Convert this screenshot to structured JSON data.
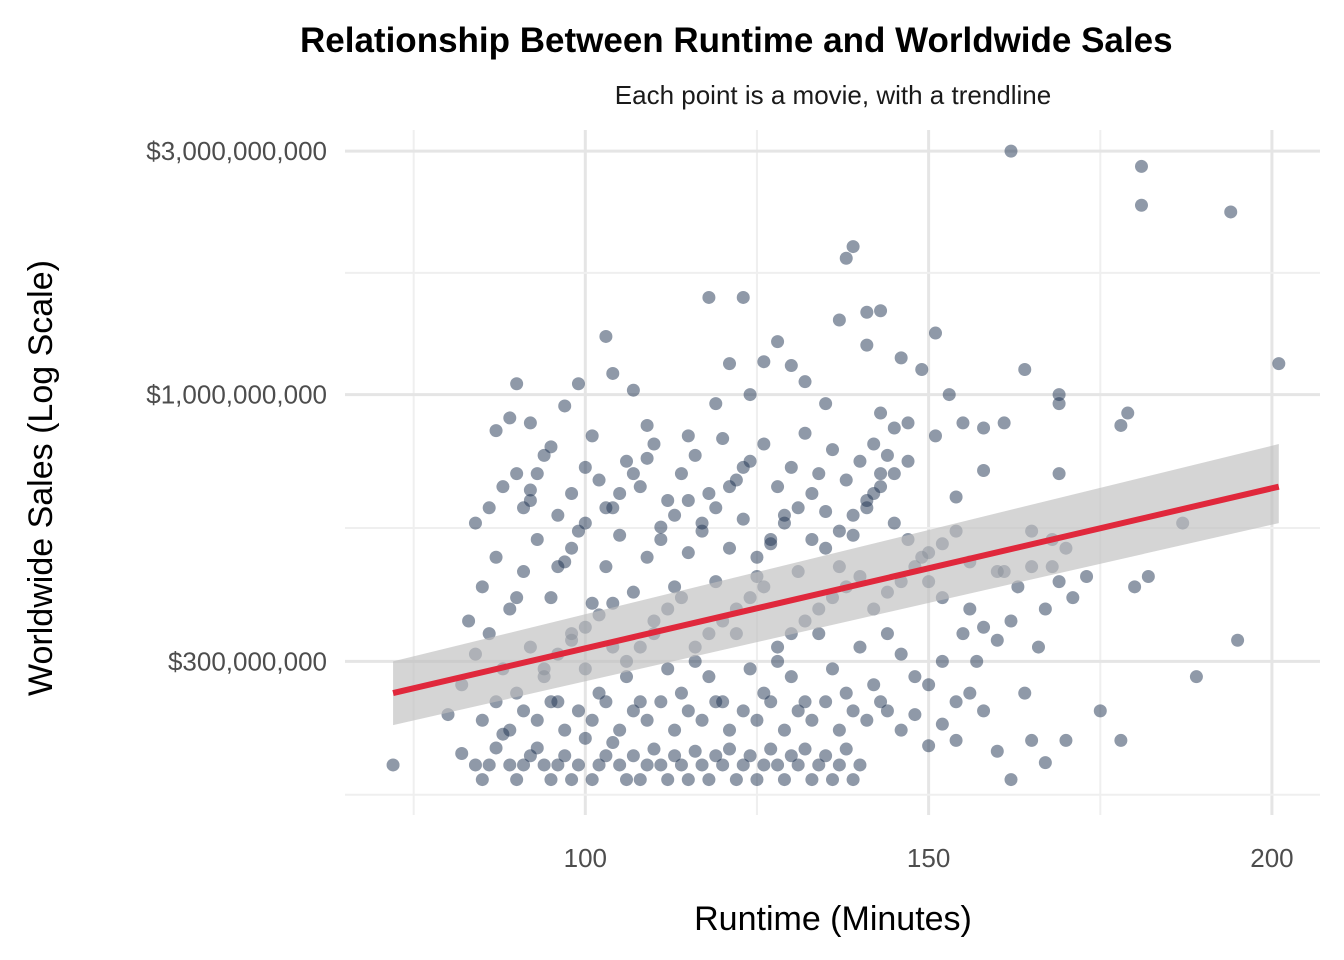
{
  "chart_data": {
    "type": "scatter",
    "title": "Relationship Between Runtime and Worldwide Sales",
    "subtitle": "Each point is a movie, with a trendline",
    "xlabel": "Runtime (Minutes)",
    "ylabel": "Worldwide Sales (Log Scale)",
    "x_ticks": [
      100,
      150,
      200
    ],
    "x_tick_labels": [
      "100",
      "150",
      "200"
    ],
    "y_ticks": [
      300000000,
      1000000000,
      3000000000
    ],
    "y_tick_labels": [
      "$300,000,000",
      "$1,000,000,000",
      "$3,000,000,000"
    ],
    "y_scale": "log",
    "xlim": [
      65,
      207
    ],
    "ylim": [
      150000000,
      3300000000
    ],
    "grid": true,
    "point_color": "#1f3352",
    "point_opacity": 0.5,
    "trendline": {
      "color": "#e0283c",
      "start": {
        "x": 72,
        "y": 260000000
      },
      "end": {
        "x": 201,
        "y": 660000000
      },
      "band_color": "#bfbfbf",
      "band_start": [
        225000000,
        300000000
      ],
      "band_end": [
        560000000,
        800000000
      ]
    },
    "points": [
      [
        72,
        188000000
      ],
      [
        80,
        236000000
      ],
      [
        82,
        198000000
      ],
      [
        84,
        188000000
      ],
      [
        85,
        176000000
      ],
      [
        86,
        188000000
      ],
      [
        87,
        203000000
      ],
      [
        88,
        216000000
      ],
      [
        89,
        188000000
      ],
      [
        90,
        176000000
      ],
      [
        91,
        188000000
      ],
      [
        92,
        196000000
      ],
      [
        93,
        203000000
      ],
      [
        94,
        188000000
      ],
      [
        95,
        176000000
      ],
      [
        96,
        188000000
      ],
      [
        97,
        196000000
      ],
      [
        98,
        176000000
      ],
      [
        99,
        188000000
      ],
      [
        100,
        212000000
      ],
      [
        101,
        176000000
      ],
      [
        102,
        188000000
      ],
      [
        103,
        196000000
      ],
      [
        104,
        208000000
      ],
      [
        105,
        188000000
      ],
      [
        106,
        176000000
      ],
      [
        107,
        196000000
      ],
      [
        108,
        176000000
      ],
      [
        109,
        188000000
      ],
      [
        110,
        202000000
      ],
      [
        111,
        188000000
      ],
      [
        112,
        176000000
      ],
      [
        113,
        196000000
      ],
      [
        114,
        188000000
      ],
      [
        115,
        176000000
      ],
      [
        116,
        200000000
      ],
      [
        117,
        188000000
      ],
      [
        118,
        176000000
      ],
      [
        119,
        196000000
      ],
      [
        120,
        188000000
      ],
      [
        121,
        202000000
      ],
      [
        122,
        176000000
      ],
      [
        123,
        188000000
      ],
      [
        124,
        196000000
      ],
      [
        125,
        176000000
      ],
      [
        126,
        188000000
      ],
      [
        127,
        202000000
      ],
      [
        128,
        188000000
      ],
      [
        129,
        176000000
      ],
      [
        130,
        196000000
      ],
      [
        131,
        188000000
      ],
      [
        132,
        202000000
      ],
      [
        133,
        176000000
      ],
      [
        134,
        188000000
      ],
      [
        135,
        196000000
      ],
      [
        136,
        176000000
      ],
      [
        137,
        188000000
      ],
      [
        138,
        202000000
      ],
      [
        139,
        176000000
      ],
      [
        140,
        188000000
      ],
      [
        82,
        270000000
      ],
      [
        84,
        310000000
      ],
      [
        86,
        340000000
      ],
      [
        88,
        290000000
      ],
      [
        90,
        260000000
      ],
      [
        92,
        320000000
      ],
      [
        94,
        280000000
      ],
      [
        96,
        250000000
      ],
      [
        98,
        340000000
      ],
      [
        100,
        290000000
      ],
      [
        102,
        260000000
      ],
      [
        104,
        320000000
      ],
      [
        106,
        280000000
      ],
      [
        108,
        250000000
      ],
      [
        110,
        340000000
      ],
      [
        112,
        290000000
      ],
      [
        114,
        260000000
      ],
      [
        116,
        320000000
      ],
      [
        118,
        280000000
      ],
      [
        120,
        250000000
      ],
      [
        122,
        340000000
      ],
      [
        124,
        290000000
      ],
      [
        126,
        260000000
      ],
      [
        128,
        320000000
      ],
      [
        130,
        280000000
      ],
      [
        132,
        250000000
      ],
      [
        134,
        340000000
      ],
      [
        136,
        290000000
      ],
      [
        138,
        260000000
      ],
      [
        140,
        320000000
      ],
      [
        83,
        360000000
      ],
      [
        85,
        420000000
      ],
      [
        87,
        480000000
      ],
      [
        89,
        380000000
      ],
      [
        91,
        450000000
      ],
      [
        93,
        520000000
      ],
      [
        95,
        400000000
      ],
      [
        97,
        470000000
      ],
      [
        99,
        540000000
      ],
      [
        101,
        390000000
      ],
      [
        103,
        460000000
      ],
      [
        105,
        530000000
      ],
      [
        107,
        410000000
      ],
      [
        109,
        480000000
      ],
      [
        111,
        550000000
      ],
      [
        113,
        420000000
      ],
      [
        115,
        490000000
      ],
      [
        117,
        560000000
      ],
      [
        119,
        430000000
      ],
      [
        121,
        500000000
      ],
      [
        123,
        570000000
      ],
      [
        125,
        440000000
      ],
      [
        127,
        510000000
      ],
      [
        129,
        580000000
      ],
      [
        131,
        450000000
      ],
      [
        133,
        520000000
      ],
      [
        135,
        590000000
      ],
      [
        137,
        460000000
      ],
      [
        139,
        530000000
      ],
      [
        141,
        600000000
      ],
      [
        84,
        560000000
      ],
      [
        86,
        600000000
      ],
      [
        88,
        660000000
      ],
      [
        90,
        700000000
      ],
      [
        92,
        620000000
      ],
      [
        94,
        760000000
      ],
      [
        96,
        580000000
      ],
      [
        98,
        640000000
      ],
      [
        100,
        720000000
      ],
      [
        102,
        680000000
      ],
      [
        104,
        600000000
      ],
      [
        106,
        740000000
      ],
      [
        108,
        660000000
      ],
      [
        110,
        800000000
      ],
      [
        112,
        620000000
      ],
      [
        114,
        700000000
      ],
      [
        116,
        760000000
      ],
      [
        118,
        640000000
      ],
      [
        120,
        820000000
      ],
      [
        122,
        680000000
      ],
      [
        124,
        740000000
      ],
      [
        126,
        800000000
      ],
      [
        128,
        660000000
      ],
      [
        130,
        720000000
      ],
      [
        132,
        840000000
      ],
      [
        134,
        700000000
      ],
      [
        136,
        780000000
      ],
      [
        138,
        680000000
      ],
      [
        140,
        740000000
      ],
      [
        142,
        800000000
      ],
      [
        87,
        850000000
      ],
      [
        89,
        900000000
      ],
      [
        90,
        1050000000
      ],
      [
        92,
        880000000
      ],
      [
        95,
        790000000
      ],
      [
        97,
        950000000
      ],
      [
        99,
        1050000000
      ],
      [
        101,
        830000000
      ],
      [
        103,
        1300000000
      ],
      [
        104,
        1100000000
      ],
      [
        107,
        1020000000
      ],
      [
        109,
        870000000
      ],
      [
        115,
        830000000
      ],
      [
        119,
        960000000
      ],
      [
        121,
        1150000000
      ],
      [
        124,
        1000000000
      ],
      [
        126,
        1160000000
      ],
      [
        128,
        1270000000
      ],
      [
        130,
        1140000000
      ],
      [
        132,
        1060000000
      ],
      [
        135,
        960000000
      ],
      [
        137,
        1400000000
      ],
      [
        138,
        1850000000
      ],
      [
        139,
        1950000000
      ],
      [
        141,
        1250000000
      ],
      [
        143,
        1460000000
      ],
      [
        146,
        1180000000
      ],
      [
        149,
        1120000000
      ],
      [
        151,
        1320000000
      ],
      [
        153,
        1000000000
      ],
      [
        118,
        1550000000
      ],
      [
        123,
        1550000000
      ],
      [
        141,
        1450000000
      ],
      [
        143,
        920000000
      ],
      [
        145,
        860000000
      ],
      [
        147,
        880000000
      ],
      [
        151,
        830000000
      ],
      [
        155,
        880000000
      ],
      [
        158,
        860000000
      ],
      [
        161,
        880000000
      ],
      [
        162,
        3000000000
      ],
      [
        181,
        2800000000
      ],
      [
        181,
        2350000000
      ],
      [
        194,
        2280000000
      ],
      [
        201,
        1150000000
      ],
      [
        164,
        1120000000
      ],
      [
        178,
        870000000
      ],
      [
        179,
        920000000
      ],
      [
        169,
        960000000
      ],
      [
        169,
        1000000000
      ],
      [
        142,
        640000000
      ],
      [
        143,
        700000000
      ],
      [
        144,
        760000000
      ],
      [
        145,
        560000000
      ],
      [
        147,
        520000000
      ],
      [
        149,
        480000000
      ],
      [
        150,
        430000000
      ],
      [
        152,
        400000000
      ],
      [
        154,
        540000000
      ],
      [
        156,
        470000000
      ],
      [
        144,
        340000000
      ],
      [
        146,
        310000000
      ],
      [
        148,
        280000000
      ],
      [
        150,
        270000000
      ],
      [
        152,
        300000000
      ],
      [
        154,
        250000000
      ],
      [
        156,
        380000000
      ],
      [
        158,
        350000000
      ],
      [
        160,
        330000000
      ],
      [
        162,
        360000000
      ],
      [
        142,
        270000000
      ],
      [
        144,
        240000000
      ],
      [
        146,
        220000000
      ],
      [
        148,
        236000000
      ],
      [
        150,
        205000000
      ],
      [
        152,
        226000000
      ],
      [
        154,
        210000000
      ],
      [
        156,
        260000000
      ],
      [
        158,
        240000000
      ],
      [
        160,
        200000000
      ],
      [
        161,
        450000000
      ],
      [
        163,
        420000000
      ],
      [
        165,
        460000000
      ],
      [
        167,
        380000000
      ],
      [
        169,
        430000000
      ],
      [
        171,
        400000000
      ],
      [
        173,
        440000000
      ],
      [
        165,
        540000000
      ],
      [
        168,
        520000000
      ],
      [
        170,
        500000000
      ],
      [
        162,
        176000000
      ],
      [
        164,
        260000000
      ],
      [
        165,
        210000000
      ],
      [
        167,
        190000000
      ],
      [
        170,
        210000000
      ],
      [
        175,
        240000000
      ],
      [
        178,
        210000000
      ],
      [
        180,
        420000000
      ],
      [
        182,
        440000000
      ],
      [
        187,
        560000000
      ],
      [
        189,
        280000000
      ],
      [
        195,
        330000000
      ],
      [
        166,
        320000000
      ],
      [
        168,
        460000000
      ],
      [
        169,
        700000000
      ],
      [
        154,
        630000000
      ],
      [
        158,
        710000000
      ],
      [
        160,
        450000000
      ],
      [
        155,
        340000000
      ],
      [
        157,
        300000000
      ],
      [
        90,
        400000000
      ],
      [
        91,
        600000000
      ],
      [
        92,
        650000000
      ],
      [
        93,
        700000000
      ],
      [
        96,
        460000000
      ],
      [
        98,
        500000000
      ],
      [
        100,
        560000000
      ],
      [
        103,
        600000000
      ],
      [
        105,
        640000000
      ],
      [
        107,
        700000000
      ],
      [
        109,
        750000000
      ],
      [
        111,
        520000000
      ],
      [
        113,
        580000000
      ],
      [
        115,
        620000000
      ],
      [
        117,
        540000000
      ],
      [
        119,
        600000000
      ],
      [
        121,
        660000000
      ],
      [
        123,
        720000000
      ],
      [
        125,
        480000000
      ],
      [
        127,
        520000000
      ],
      [
        129,
        560000000
      ],
      [
        131,
        600000000
      ],
      [
        133,
        640000000
      ],
      [
        135,
        500000000
      ],
      [
        137,
        540000000
      ],
      [
        139,
        580000000
      ],
      [
        141,
        620000000
      ],
      [
        143,
        660000000
      ],
      [
        145,
        700000000
      ],
      [
        147,
        740000000
      ],
      [
        85,
        230000000
      ],
      [
        87,
        250000000
      ],
      [
        89,
        220000000
      ],
      [
        91,
        240000000
      ],
      [
        93,
        230000000
      ],
      [
        95,
        250000000
      ],
      [
        97,
        220000000
      ],
      [
        99,
        240000000
      ],
      [
        101,
        230000000
      ],
      [
        103,
        250000000
      ],
      [
        105,
        220000000
      ],
      [
        107,
        240000000
      ],
      [
        109,
        230000000
      ],
      [
        111,
        250000000
      ],
      [
        113,
        220000000
      ],
      [
        115,
        240000000
      ],
      [
        117,
        230000000
      ],
      [
        119,
        250000000
      ],
      [
        121,
        220000000
      ],
      [
        123,
        240000000
      ],
      [
        125,
        230000000
      ],
      [
        127,
        250000000
      ],
      [
        129,
        220000000
      ],
      [
        131,
        240000000
      ],
      [
        133,
        230000000
      ],
      [
        135,
        250000000
      ],
      [
        137,
        220000000
      ],
      [
        139,
        240000000
      ],
      [
        141,
        230000000
      ],
      [
        143,
        250000000
      ],
      [
        94,
        290000000
      ],
      [
        96,
        310000000
      ],
      [
        98,
        330000000
      ],
      [
        100,
        350000000
      ],
      [
        102,
        370000000
      ],
      [
        104,
        390000000
      ],
      [
        106,
        300000000
      ],
      [
        108,
        320000000
      ],
      [
        110,
        360000000
      ],
      [
        112,
        380000000
      ],
      [
        114,
        400000000
      ],
      [
        116,
        300000000
      ],
      [
        118,
        340000000
      ],
      [
        120,
        360000000
      ],
      [
        122,
        380000000
      ],
      [
        124,
        400000000
      ],
      [
        126,
        420000000
      ],
      [
        128,
        300000000
      ],
      [
        130,
        340000000
      ],
      [
        132,
        360000000
      ],
      [
        134,
        380000000
      ],
      [
        136,
        400000000
      ],
      [
        138,
        420000000
      ],
      [
        140,
        440000000
      ],
      [
        142,
        380000000
      ],
      [
        144,
        410000000
      ],
      [
        146,
        430000000
      ],
      [
        148,
        460000000
      ],
      [
        150,
        490000000
      ],
      [
        152,
        510000000
      ]
    ]
  }
}
